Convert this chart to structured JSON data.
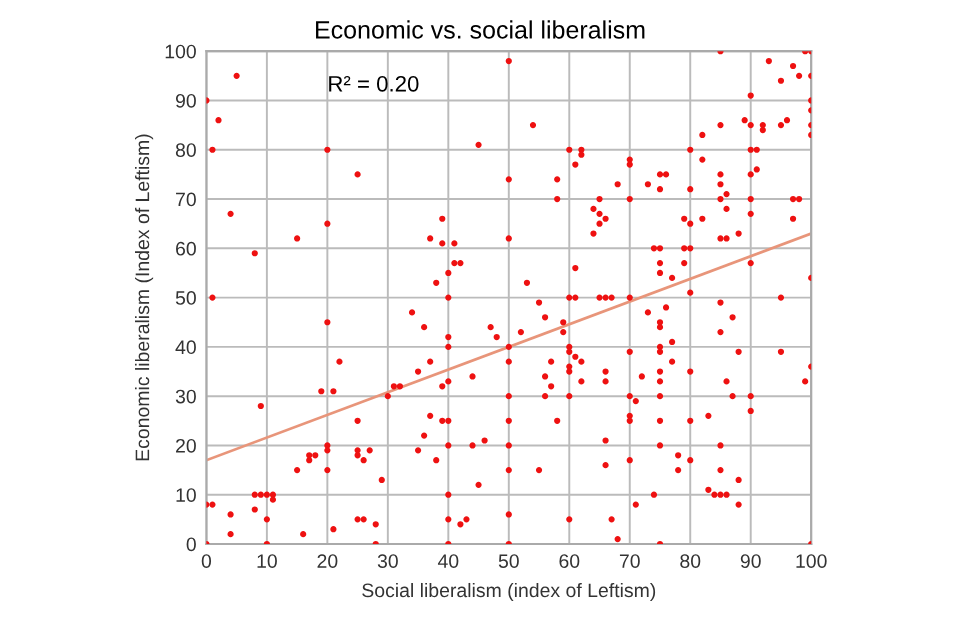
{
  "chart_data": {
    "type": "scatter",
    "title": "Economic vs. social liberalism",
    "xlabel": "Social liberalism (index of Leftism)",
    "ylabel": "Economic liberalism (Index of Leftism)",
    "annotations": [
      "R² = 0.20"
    ],
    "xlim": [
      0,
      100
    ],
    "ylim": [
      0,
      100
    ],
    "xticks": [
      0,
      10,
      20,
      30,
      40,
      50,
      60,
      70,
      80,
      90,
      100
    ],
    "yticks": [
      0,
      10,
      20,
      30,
      40,
      50,
      60,
      70,
      80,
      90,
      100
    ],
    "grid": true,
    "series": [
      {
        "color": "#ee1111",
        "marker": "circle",
        "x": [
          0,
          1,
          2,
          5,
          4,
          8,
          15,
          20,
          20,
          25,
          37,
          39,
          39,
          41,
          41,
          45,
          50,
          50,
          50,
          54,
          60,
          62,
          62,
          61,
          58,
          58,
          68,
          70,
          70,
          73,
          75,
          76,
          75,
          65,
          64,
          65,
          66,
          65,
          64,
          70,
          80,
          80,
          79,
          80,
          82,
          82,
          82,
          85,
          85,
          85,
          85,
          85,
          86,
          86,
          86,
          88,
          89,
          90,
          90,
          90,
          91,
          90,
          91,
          90,
          90,
          92,
          92,
          93,
          95,
          95,
          96,
          97,
          98,
          99,
          100,
          100,
          100,
          100,
          100,
          100,
          97,
          98,
          97,
          75,
          74,
          79,
          80,
          85,
          0,
          0,
          1,
          1,
          4,
          4,
          8,
          8,
          9,
          9,
          10,
          10,
          10,
          11,
          11,
          15,
          16,
          17,
          17,
          18,
          19,
          20,
          20,
          20,
          20,
          21,
          21,
          22,
          25,
          25,
          25,
          25,
          26,
          26,
          27,
          28,
          28,
          29,
          30,
          31,
          32,
          34,
          35,
          35,
          36,
          36,
          37,
          37,
          38,
          38,
          39,
          39,
          40,
          40,
          40,
          40,
          40,
          40,
          40,
          40,
          40,
          40,
          42,
          42,
          43,
          44,
          44,
          45,
          46,
          47,
          48,
          50,
          50,
          50,
          50,
          50,
          50,
          50,
          50,
          53,
          55,
          56,
          52,
          57,
          56,
          56,
          57,
          58,
          55,
          59,
          59,
          60,
          61,
          60,
          60,
          61,
          60,
          60,
          62,
          62,
          60,
          60,
          61,
          65,
          66,
          67,
          66,
          66,
          66,
          66,
          67,
          68,
          70,
          70,
          70,
          71,
          70,
          70,
          70,
          71,
          72,
          73,
          74,
          75,
          75,
          75,
          75,
          75,
          75,
          75,
          75,
          75,
          75,
          75,
          75,
          76,
          77,
          77,
          77,
          78,
          78,
          79,
          80,
          80,
          80,
          80,
          83,
          83,
          84,
          85,
          85,
          85,
          85,
          85,
          86,
          86,
          87,
          87,
          88,
          88,
          88,
          90,
          90,
          90,
          95,
          95,
          99,
          100,
          100,
          100
        ],
        "values": [
          90,
          80,
          86,
          95,
          67,
          59,
          62,
          80,
          65,
          75,
          62,
          66,
          61,
          61,
          57,
          81,
          98,
          74,
          62,
          85,
          80,
          80,
          79,
          77,
          74,
          70,
          73,
          78,
          77,
          73,
          75,
          75,
          72,
          70,
          68,
          67,
          66,
          65,
          63,
          70,
          80,
          72,
          66,
          65,
          83,
          78,
          66,
          100,
          85,
          75,
          73,
          70,
          71,
          68,
          62,
          63,
          86,
          91,
          85,
          80,
          80,
          75,
          76,
          70,
          67,
          85,
          84,
          98,
          94,
          85,
          86,
          97,
          95,
          100,
          100,
          95,
          90,
          88,
          85,
          83,
          70,
          70,
          66,
          60,
          60,
          60,
          60,
          62,
          0,
          8,
          8,
          50,
          6,
          2,
          7,
          10,
          28,
          10,
          10,
          5,
          0,
          10,
          9,
          15,
          2,
          18,
          17,
          18,
          31,
          45,
          20,
          19,
          15,
          31,
          3,
          37,
          25,
          19,
          18,
          5,
          5,
          17,
          19,
          4,
          0,
          13,
          30,
          32,
          32,
          47,
          35,
          19,
          44,
          22,
          37,
          26,
          53,
          17,
          32,
          25,
          55,
          50,
          42,
          40,
          33,
          25,
          20,
          10,
          5,
          0,
          57,
          4,
          5,
          34,
          20,
          12,
          21,
          44,
          42,
          40,
          37,
          30,
          25,
          20,
          15,
          6,
          0,
          53,
          49,
          46,
          43,
          37,
          34,
          30,
          32,
          25,
          15,
          45,
          43,
          50,
          50,
          40,
          39,
          38,
          36,
          35,
          37,
          33,
          30,
          5,
          56,
          50,
          50,
          50,
          35,
          33,
          21,
          16,
          5,
          1,
          50,
          39,
          30,
          29,
          26,
          25,
          17,
          8,
          34,
          47,
          10,
          57,
          55,
          45,
          44,
          40,
          39,
          35,
          33,
          30,
          25,
          20,
          0,
          48,
          54,
          41,
          37,
          18,
          15,
          57,
          51,
          35,
          25,
          17,
          26,
          11,
          10,
          49,
          43,
          20,
          15,
          10,
          33,
          10,
          46,
          30,
          39,
          13,
          8,
          57,
          30,
          27,
          50,
          39,
          33,
          54,
          36,
          0
        ]
      },
      {
        "type": "line",
        "color": "#e8957a",
        "x": [
          0,
          100
        ],
        "values": [
          17,
          63
        ]
      }
    ]
  }
}
